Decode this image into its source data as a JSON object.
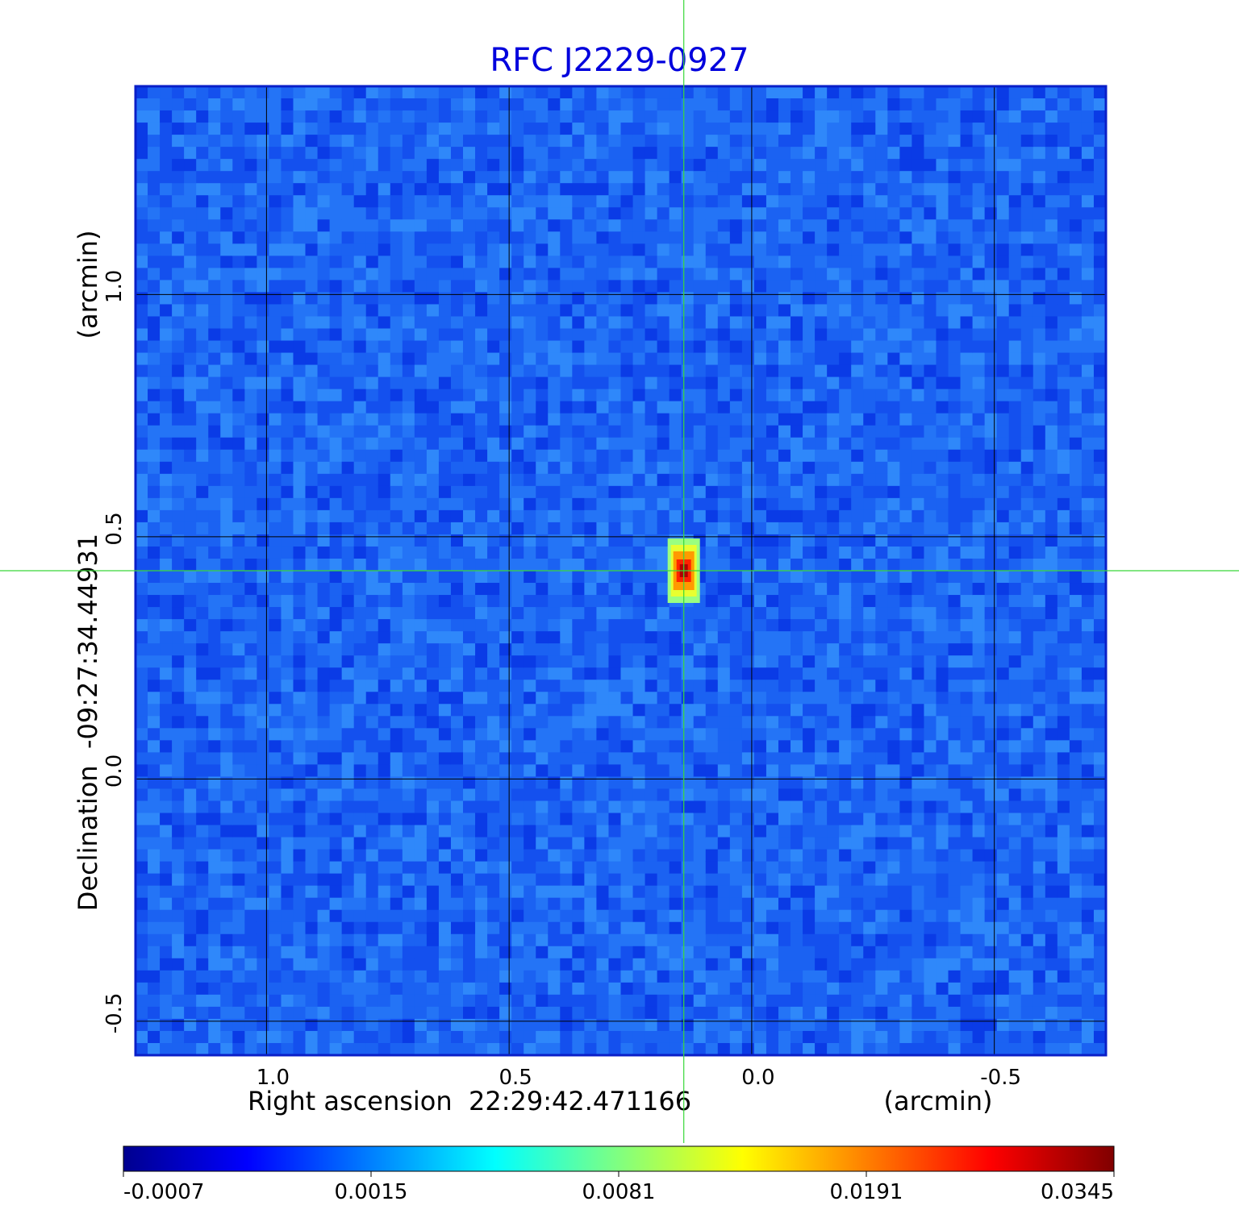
{
  "chart_data": {
    "type": "heatmap",
    "title": "RFC J2229-0927",
    "xlabel": "Right ascension  22:29:42.471166",
    "xunit": "(arcmin)",
    "ylabel": "Declination  -09:27:34.44931",
    "yunit": "(arcmin)",
    "x_range": [
      1.27,
      -0.73
    ],
    "y_range": [
      -0.57,
      1.43
    ],
    "x_ticks": [
      1.0,
      0.5,
      0.0,
      -0.5
    ],
    "x_tick_labels": [
      "1.0",
      "0.5",
      "0.0",
      "-0.5"
    ],
    "y_ticks": [
      -0.5,
      0.0,
      0.5,
      1.0
    ],
    "y_tick_labels": [
      "-0.5",
      "0.0",
      "0.5",
      "1.0"
    ],
    "grid": true,
    "grid_color": "#000000",
    "crosshair": {
      "x": 0.14,
      "y": 0.43,
      "color": "#39d839"
    },
    "source": {
      "x": 0.14,
      "y": 0.43,
      "peak": 0.0345
    },
    "colormap": "jet",
    "colorbar": {
      "orientation": "horizontal",
      "tick_labels": [
        "-0.0007",
        "0.0015",
        "0.0081",
        "0.0191",
        "0.0345"
      ],
      "tick_values": [
        -0.0007,
        0.0015,
        0.0081,
        0.0191,
        0.0345
      ]
    },
    "colors": {
      "title": "#0000dd",
      "text": "#000000"
    }
  }
}
